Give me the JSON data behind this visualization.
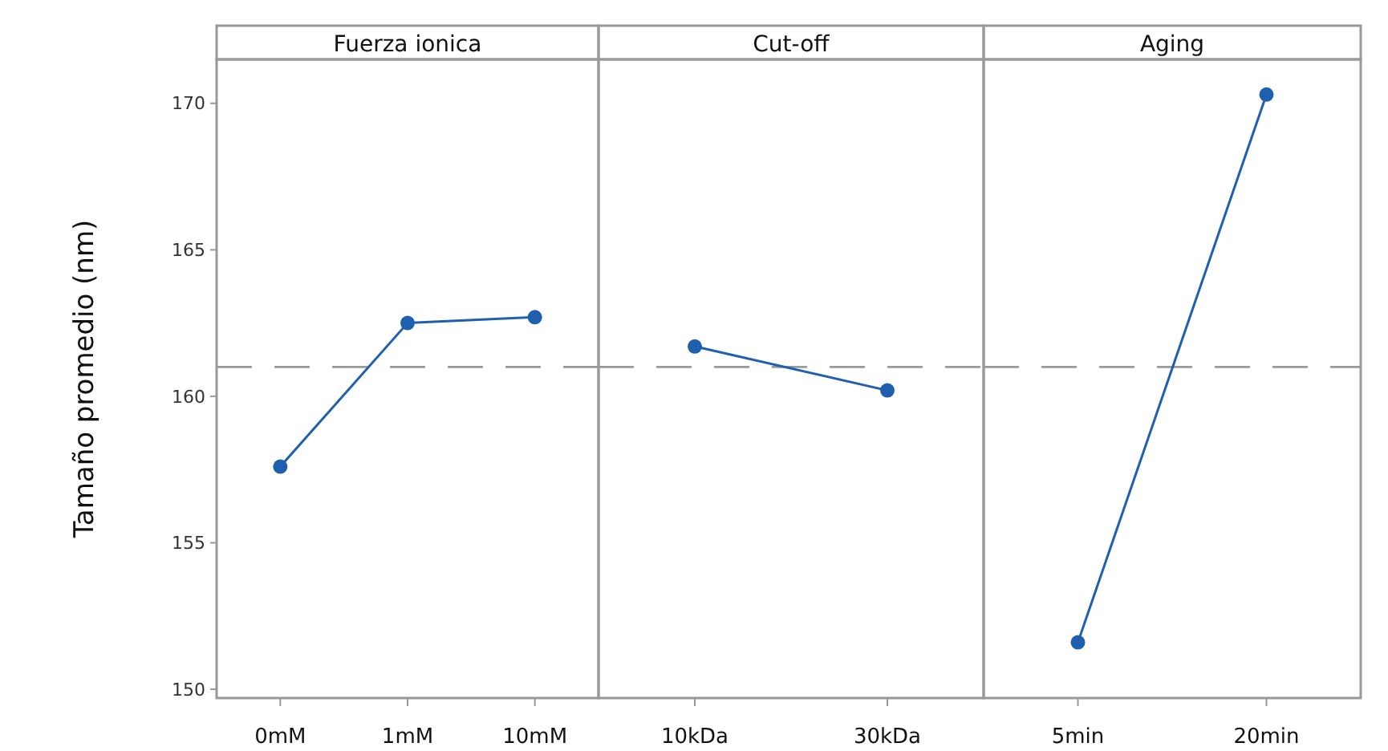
{
  "chart_data": [
    {
      "type": "line",
      "title": "Fuerza ionica",
      "ylabel": "Tamaño promedio (nm)",
      "categories": [
        "0mM",
        "1mM",
        "10mM"
      ],
      "series": [
        {
          "color": "#1f5fb0",
          "values": [
            157.6,
            162.5,
            162.7
          ]
        }
      ],
      "ylim": [
        149.7,
        171.5
      ],
      "yticks": [
        150,
        155,
        160,
        165,
        170
      ],
      "marker": "circle",
      "line_style": "solid",
      "grid": false,
      "ref_lines": [
        {
          "axis": "y",
          "value": 161,
          "color": "#999999",
          "line_style": "dashed"
        }
      ]
    },
    {
      "type": "line",
      "title": "Cut-off",
      "categories": [
        "10kDa",
        "30kDa"
      ],
      "series": [
        {
          "color": "#1f5fb0",
          "values": [
            161.7,
            160.2
          ]
        }
      ],
      "ylim": [
        149.7,
        171.5
      ],
      "tick_labels": "x",
      "marker": "circle",
      "line_style": "solid",
      "grid": false,
      "ref_lines": [
        {
          "axis": "y",
          "value": 161,
          "color": "#999999",
          "line_style": "dashed"
        }
      ]
    },
    {
      "type": "line",
      "title": "Aging",
      "categories": [
        "5min",
        "20min"
      ],
      "series": [
        {
          "color": "#1f5fb0",
          "values": [
            151.6,
            170.3
          ]
        }
      ],
      "ylim": [
        149.7,
        171.5
      ],
      "tick_labels": "x",
      "marker": "circle",
      "line_style": "solid",
      "grid": false,
      "ref_lines": [
        {
          "axis": "y",
          "value": 161,
          "color": "#999999",
          "line_style": "dashed"
        }
      ]
    }
  ]
}
